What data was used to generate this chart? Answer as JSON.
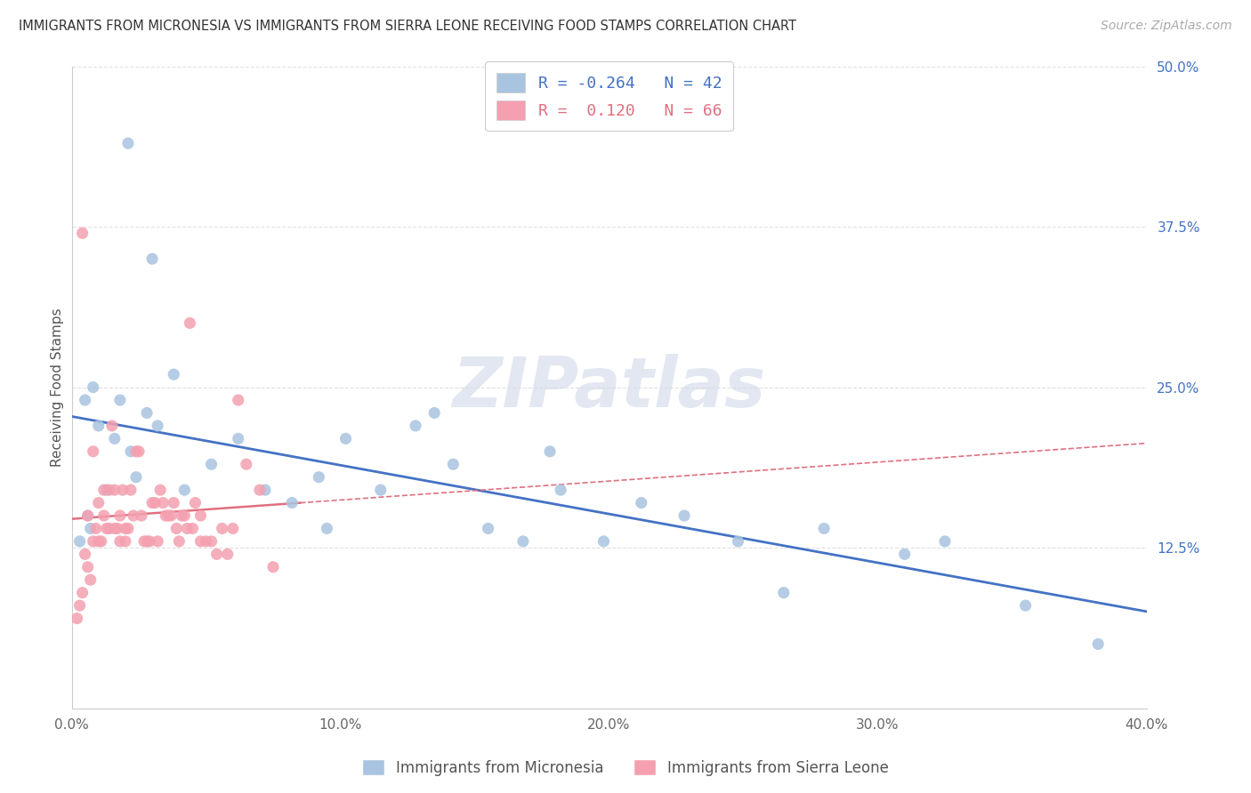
{
  "title": "IMMIGRANTS FROM MICRONESIA VS IMMIGRANTS FROM SIERRA LEONE RECEIVING FOOD STAMPS CORRELATION CHART",
  "source": "Source: ZipAtlas.com",
  "ylabel": "Receiving Food Stamps",
  "xlim": [
    0.0,
    0.4
  ],
  "ylim": [
    0.0,
    0.5
  ],
  "yticks_right": [
    0.0,
    0.125,
    0.25,
    0.375,
    0.5
  ],
  "ytick_labels_right": [
    "",
    "12.5%",
    "25.0%",
    "37.5%",
    "50.0%"
  ],
  "xticks": [
    0.0,
    0.1,
    0.2,
    0.3,
    0.4
  ],
  "xtick_labels": [
    "0.0%",
    "10.0%",
    "20.0%",
    "30.0%",
    "40.0%"
  ],
  "micronesia_color": "#a8c4e0",
  "sierra_leone_color": "#f4a0b0",
  "micronesia_line_color": "#4472c4",
  "sierra_leone_line_color": "#e07080",
  "legend_micronesia": "Immigrants from Micronesia",
  "legend_sierra_leone": "Immigrants from Sierra Leone",
  "R_micronesia": -0.264,
  "N_micronesia": 42,
  "R_sierra_leone": 0.12,
  "N_sierra_leone": 66,
  "watermark": "ZIPatlas",
  "micronesia_x": [
    0.021,
    0.03,
    0.008,
    0.005,
    0.01,
    0.018,
    0.013,
    0.028,
    0.038,
    0.022,
    0.007,
    0.003,
    0.006,
    0.016,
    0.024,
    0.032,
    0.042,
    0.052,
    0.062,
    0.072,
    0.082,
    0.092,
    0.102,
    0.115,
    0.128,
    0.142,
    0.155,
    0.168,
    0.182,
    0.198,
    0.212,
    0.228,
    0.248,
    0.265,
    0.28,
    0.31,
    0.325,
    0.355,
    0.382,
    0.178,
    0.095,
    0.135
  ],
  "micronesia_y": [
    0.44,
    0.35,
    0.25,
    0.24,
    0.22,
    0.24,
    0.17,
    0.23,
    0.26,
    0.2,
    0.14,
    0.13,
    0.15,
    0.21,
    0.18,
    0.22,
    0.17,
    0.19,
    0.21,
    0.17,
    0.16,
    0.18,
    0.21,
    0.17,
    0.22,
    0.19,
    0.14,
    0.13,
    0.17,
    0.13,
    0.16,
    0.15,
    0.13,
    0.09,
    0.14,
    0.12,
    0.13,
    0.08,
    0.05,
    0.2,
    0.14,
    0.23
  ],
  "sierra_leone_x": [
    0.004,
    0.006,
    0.008,
    0.01,
    0.012,
    0.014,
    0.016,
    0.018,
    0.02,
    0.022,
    0.024,
    0.026,
    0.028,
    0.03,
    0.032,
    0.034,
    0.036,
    0.038,
    0.04,
    0.042,
    0.044,
    0.046,
    0.048,
    0.05,
    0.052,
    0.054,
    0.056,
    0.058,
    0.06,
    0.003,
    0.005,
    0.007,
    0.009,
    0.011,
    0.013,
    0.015,
    0.017,
    0.019,
    0.021,
    0.023,
    0.025,
    0.027,
    0.029,
    0.031,
    0.033,
    0.035,
    0.037,
    0.039,
    0.041,
    0.043,
    0.002,
    0.004,
    0.006,
    0.008,
    0.01,
    0.012,
    0.014,
    0.016,
    0.018,
    0.02,
    0.045,
    0.048,
    0.062,
    0.065,
    0.07,
    0.075
  ],
  "sierra_leone_y": [
    0.37,
    0.15,
    0.2,
    0.13,
    0.17,
    0.14,
    0.17,
    0.13,
    0.14,
    0.17,
    0.2,
    0.15,
    0.13,
    0.16,
    0.13,
    0.16,
    0.15,
    0.16,
    0.13,
    0.15,
    0.3,
    0.16,
    0.15,
    0.13,
    0.13,
    0.12,
    0.14,
    0.12,
    0.14,
    0.08,
    0.12,
    0.1,
    0.14,
    0.13,
    0.14,
    0.22,
    0.14,
    0.17,
    0.14,
    0.15,
    0.2,
    0.13,
    0.13,
    0.16,
    0.17,
    0.15,
    0.15,
    0.14,
    0.15,
    0.14,
    0.07,
    0.09,
    0.11,
    0.13,
    0.16,
    0.15,
    0.17,
    0.14,
    0.15,
    0.13,
    0.14,
    0.13,
    0.24,
    0.19,
    0.17,
    0.11
  ]
}
